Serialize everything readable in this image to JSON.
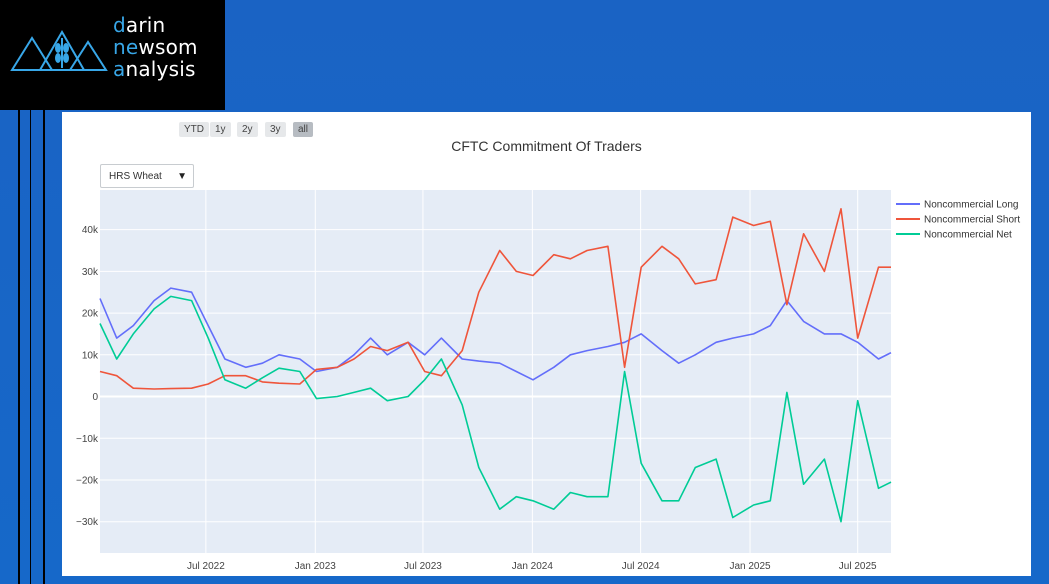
{
  "logo": {
    "line1_acc": "d",
    "line1_rest": "arin",
    "line2_acc": "ne",
    "line2_mid": "w",
    "line2_rest": "som",
    "line3_acc": "a",
    "line3_rest": "nalysis"
  },
  "range_buttons": [
    "YTD",
    "1y",
    "2y",
    "3y",
    "all"
  ],
  "dropdown": {
    "selected": "HRS Wheat"
  },
  "colors": {
    "long": "#636efa",
    "short": "#ef553b",
    "net": "#00cc96",
    "plot_bg": "#e5ecf6"
  },
  "chart_data": {
    "type": "line",
    "title": "CFTC Commitment Of Traders",
    "xlabel": "",
    "ylabel": "",
    "x_ticks": [
      "Jul 2022",
      "Jan 2023",
      "Jul 2023",
      "Jan 2024",
      "Jul 2024",
      "Jan 2025",
      "Jul 2025"
    ],
    "y_ticks": [
      "40k",
      "30k",
      "20k",
      "10k",
      "0",
      "−10k",
      "−20k",
      "−30k"
    ],
    "y_tick_values": [
      40000,
      30000,
      20000,
      10000,
      0,
      -10000,
      -20000,
      -30000
    ],
    "ylim": [
      -37500,
      49500
    ],
    "xlim": [
      "2022-01-04",
      "2025-08-26"
    ],
    "legend_position": "right",
    "x": [
      "2022-01-04",
      "2022-02-01",
      "2022-03-01",
      "2022-04-05",
      "2022-05-03",
      "2022-06-07",
      "2022-07-05",
      "2022-08-02",
      "2022-09-06",
      "2022-10-04",
      "2022-11-01",
      "2022-12-06",
      "2023-01-03",
      "2023-02-07",
      "2023-03-07",
      "2023-04-04",
      "2023-05-02",
      "2023-06-06",
      "2023-07-04",
      "2023-08-01",
      "2023-09-05",
      "2023-10-03",
      "2023-11-07",
      "2023-12-05",
      "2024-01-02",
      "2024-02-06",
      "2024-03-05",
      "2024-04-02",
      "2024-05-07",
      "2024-06-04",
      "2024-07-02",
      "2024-08-06",
      "2024-09-03",
      "2024-10-01",
      "2024-11-05",
      "2024-12-03",
      "2025-01-07",
      "2025-02-04",
      "2025-03-04",
      "2025-04-01",
      "2025-05-06",
      "2025-06-03",
      "2025-07-01",
      "2025-08-05",
      "2025-08-26"
    ],
    "series": [
      {
        "name": "Noncommercial Long",
        "values": [
          23500,
          14000,
          17000,
          23000,
          26000,
          25000,
          17000,
          9000,
          7000,
          8000,
          10000,
          9000,
          6000,
          7000,
          10000,
          14000,
          10000,
          13000,
          10000,
          14000,
          9000,
          8500,
          8000,
          6000,
          4000,
          7000,
          10000,
          11000,
          12000,
          13000,
          15000,
          11000,
          8000,
          10000,
          13000,
          14000,
          15000,
          17000,
          23000,
          18000,
          15000,
          15000,
          13000,
          9000,
          10500
        ]
      },
      {
        "name": "Noncommercial Short",
        "values": [
          6000,
          5000,
          2000,
          1800,
          1900,
          2000,
          3000,
          5000,
          5000,
          3500,
          3200,
          3000,
          6500,
          7000,
          9000,
          12000,
          11000,
          13000,
          6000,
          5000,
          11000,
          25000,
          35000,
          30000,
          29000,
          34000,
          33000,
          35000,
          36000,
          7000,
          31000,
          36000,
          33000,
          27000,
          28000,
          43000,
          41000,
          42000,
          22000,
          39000,
          30000,
          45000,
          14000,
          31000,
          31000
        ]
      },
      {
        "name": "Noncommercial Net",
        "values": [
          17500,
          9000,
          15000,
          21000,
          24000,
          23000,
          14000,
          4000,
          2000,
          4500,
          6800,
          6000,
          -500,
          0,
          1000,
          2000,
          -1000,
          0,
          4000,
          9000,
          -2000,
          -17000,
          -27000,
          -24000,
          -25000,
          -27000,
          -23000,
          -24000,
          -24000,
          6000,
          -16000,
          -25000,
          -25000,
          -17000,
          -15000,
          -29000,
          -26000,
          -25000,
          1000,
          -21000,
          -15000,
          -30000,
          -1000,
          -22000,
          -20500
        ]
      }
    ]
  }
}
